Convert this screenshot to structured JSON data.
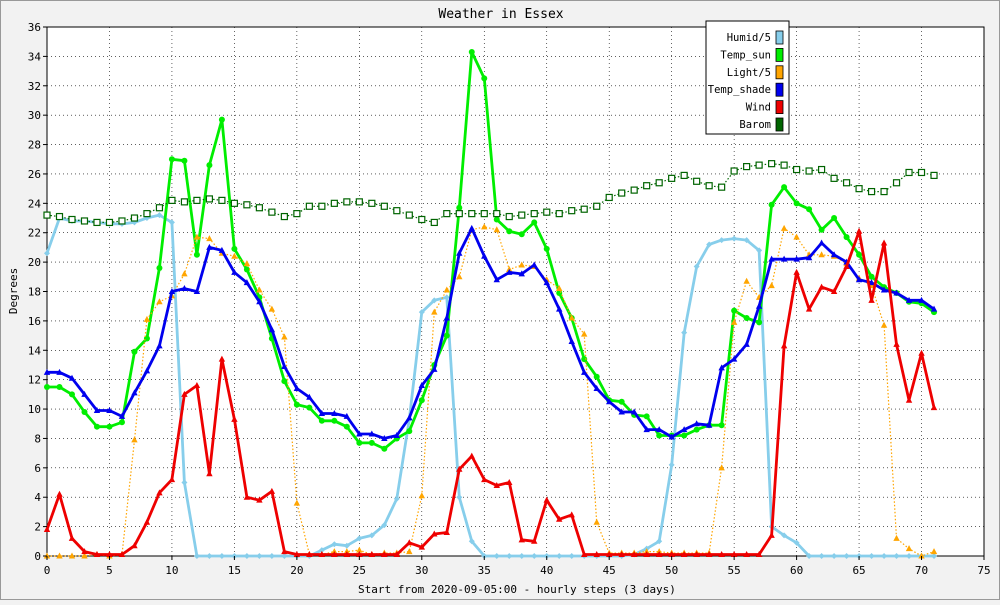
{
  "chart_data": {
    "type": "line",
    "title": "Weather in Essex",
    "xlabel": "Start from 2020-09-05:00 - hourly steps (3 days)",
    "ylabel": "Degrees",
    "xlim": [
      0,
      75
    ],
    "ylim": [
      0,
      36
    ],
    "x_ticks": [
      0,
      5,
      10,
      15,
      20,
      25,
      30,
      35,
      40,
      45,
      50,
      55,
      60,
      65,
      70,
      75
    ],
    "y_ticks": [
      0,
      2,
      4,
      6,
      8,
      10,
      12,
      14,
      16,
      18,
      20,
      22,
      24,
      26,
      28,
      30,
      32,
      34,
      36
    ],
    "grid": true,
    "legend_position": "top-right",
    "series": [
      {
        "name": "Humid/5",
        "color": "#87ceeb",
        "marker": "diamond",
        "style": "solid",
        "values": [
          20.6,
          23.0,
          22.8,
          22.8,
          22.7,
          22.6,
          22.6,
          22.7,
          23.0,
          23.2,
          22.7,
          5.0,
          0,
          0,
          0,
          0,
          0,
          0,
          0,
          0,
          0,
          0,
          0.4,
          0.8,
          0.7,
          1.2,
          1.4,
          2.1,
          3.9,
          9.3,
          16.6,
          17.4,
          17.6,
          4.0,
          1.0,
          0,
          0,
          0,
          0,
          0,
          0,
          0,
          0,
          0,
          0,
          0,
          0,
          0.1,
          0.5,
          1.0,
          6.2,
          15.2,
          19.7,
          21.2,
          21.5,
          21.6,
          21.5,
          20.8,
          2.0,
          1.4,
          0.9,
          0,
          0,
          0,
          0,
          0,
          0,
          0,
          0,
          0,
          0,
          0
        ]
      },
      {
        "name": "Temp_sun",
        "color": "#00ee00",
        "marker": "circle",
        "style": "solid",
        "values": [
          11.5,
          11.5,
          11.0,
          9.8,
          8.8,
          8.8,
          9.1,
          13.9,
          14.8,
          19.6,
          27.0,
          26.9,
          20.5,
          26.6,
          29.7,
          20.9,
          19.5,
          17.6,
          14.8,
          11.9,
          10.3,
          10.1,
          9.2,
          9.2,
          8.8,
          7.7,
          7.7,
          7.3,
          8.0,
          8.5,
          10.6,
          13.0,
          15.0,
          23.7,
          34.3,
          32.5,
          22.9,
          22.1,
          21.9,
          22.7,
          20.9,
          17.9,
          16.2,
          13.4,
          12.2,
          10.6,
          10.5,
          9.6,
          9.5,
          8.2,
          8.2,
          8.2,
          8.6,
          8.9,
          8.9,
          16.7,
          16.2,
          15.9,
          23.9,
          25.1,
          24.0,
          23.6,
          22.2,
          23.0,
          21.7,
          20.5,
          19.0,
          18.3,
          17.9,
          17.3,
          17.2,
          16.6
        ]
      },
      {
        "name": "Light/5",
        "color": "#ffa500",
        "marker": "triangle",
        "style": "dotted",
        "values": [
          0,
          0,
          0,
          0,
          0.1,
          0,
          0.1,
          7.9,
          16.1,
          17.3,
          17.7,
          19.2,
          21.7,
          21.6,
          20.6,
          20.4,
          19.9,
          18.1,
          16.8,
          14.9,
          3.6,
          0.1,
          0.1,
          0.3,
          0.3,
          0.4,
          0.1,
          0.2,
          0.2,
          0.3,
          4.1,
          16.6,
          18.1,
          19.0,
          22.2,
          22.4,
          22.2,
          19.5,
          19.8,
          19.7,
          18.8,
          18.2,
          16.2,
          15.1,
          2.3,
          0.2,
          0.2,
          0.2,
          0.3,
          0.3,
          0.2,
          0.2,
          0.2,
          0.2,
          6.0,
          15.9,
          18.7,
          17.6,
          18.4,
          22.3,
          21.7,
          20.5,
          20.5,
          20.4,
          19.9,
          18.9,
          18.4,
          15.7,
          1.2,
          0.5,
          0,
          0.3
        ]
      },
      {
        "name": "Temp_shade",
        "color": "#0000ee",
        "marker": "triangle",
        "style": "solid",
        "values": [
          12.5,
          12.5,
          12.1,
          11.0,
          9.9,
          9.9,
          9.5,
          11.1,
          12.6,
          14.3,
          18.0,
          18.2,
          18.0,
          21.0,
          20.8,
          19.3,
          18.6,
          17.3,
          15.4,
          12.9,
          11.4,
          10.8,
          9.7,
          9.7,
          9.5,
          8.3,
          8.3,
          8.0,
          8.2,
          9.4,
          11.6,
          12.7,
          16.2,
          20.6,
          22.3,
          20.4,
          18.8,
          19.3,
          19.2,
          19.8,
          18.6,
          16.8,
          14.6,
          12.5,
          11.4,
          10.5,
          9.8,
          9.8,
          8.6,
          8.6,
          8.1,
          8.6,
          9.0,
          8.9,
          12.8,
          13.4,
          14.4,
          17.0,
          20.2,
          20.2,
          20.2,
          20.3,
          21.3,
          20.5,
          20.0,
          18.8,
          18.6,
          18.1,
          17.9,
          17.4,
          17.4,
          16.8
        ]
      },
      {
        "name": "Wind",
        "color": "#ee0000",
        "marker": "triangle",
        "style": "solid",
        "values": [
          1.8,
          4.2,
          1.2,
          0.3,
          0.1,
          0.1,
          0.1,
          0.7,
          2.3,
          4.3,
          5.2,
          11.0,
          11.6,
          5.6,
          13.4,
          9.3,
          4.0,
          3.8,
          4.4,
          0.3,
          0.1,
          0.1,
          0.1,
          0.1,
          0.1,
          0.1,
          0.1,
          0.1,
          0.1,
          0.9,
          0.6,
          1.5,
          1.6,
          5.9,
          6.8,
          5.2,
          4.8,
          5.0,
          1.1,
          1.0,
          3.8,
          2.5,
          2.8,
          0.1,
          0.1,
          0.1,
          0.1,
          0.1,
          0.1,
          0.1,
          0.1,
          0.1,
          0.1,
          0.1,
          0.1,
          0.1,
          0.1,
          0.1,
          1.4,
          14.3,
          19.3,
          16.8,
          18.3,
          18.0,
          19.7,
          22.1,
          17.4,
          21.3,
          14.4,
          10.6,
          13.8,
          10.1
        ]
      },
      {
        "name": "Barom",
        "color": "#006400",
        "marker": "square",
        "style": "dotted",
        "values": [
          23.2,
          23.1,
          22.9,
          22.8,
          22.7,
          22.7,
          22.8,
          23.0,
          23.3,
          23.7,
          24.2,
          24.1,
          24.2,
          24.3,
          24.2,
          24.0,
          23.9,
          23.7,
          23.4,
          23.1,
          23.3,
          23.8,
          23.8,
          24.0,
          24.1,
          24.1,
          24.0,
          23.8,
          23.5,
          23.2,
          22.9,
          22.7,
          23.3,
          23.3,
          23.3,
          23.3,
          23.3,
          23.1,
          23.2,
          23.3,
          23.4,
          23.3,
          23.5,
          23.6,
          23.8,
          24.4,
          24.7,
          24.9,
          25.2,
          25.4,
          25.7,
          25.9,
          25.5,
          25.2,
          25.1,
          26.2,
          26.5,
          26.6,
          26.7,
          26.6,
          26.3,
          26.2,
          26.3,
          25.7,
          25.4,
          25.0,
          24.8,
          24.8,
          25.4,
          26.1,
          26.1,
          25.9
        ]
      }
    ]
  }
}
